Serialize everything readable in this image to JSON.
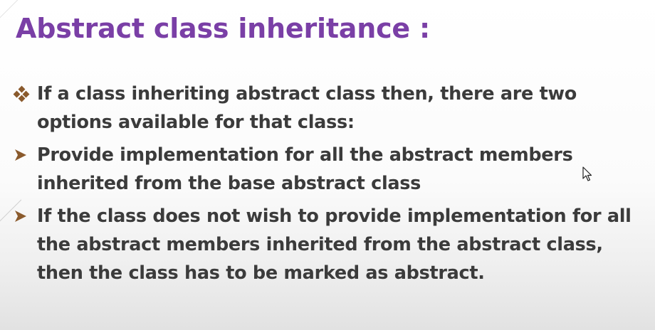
{
  "title": "Abstract class inheritance :",
  "bullets": [
    {
      "marker": "diamond-bullet-icon",
      "text": "If a class inheriting abstract class then, there are two options available for that class:"
    },
    {
      "marker": "arrow-bullet-icon",
      "text": "Provide implementation for all the abstract members inherited from the base abstract class"
    },
    {
      "marker": "arrow-bullet-icon",
      "text": "If the class does not wish to provide implementation for all the abstract members inherited from the abstract class, then the class has to be marked as abstract."
    }
  ],
  "colors": {
    "title": "#7a3fa6",
    "text": "#3b3b3b",
    "marker": "#8a5a2c"
  },
  "cursor": "mouse-pointer-icon"
}
